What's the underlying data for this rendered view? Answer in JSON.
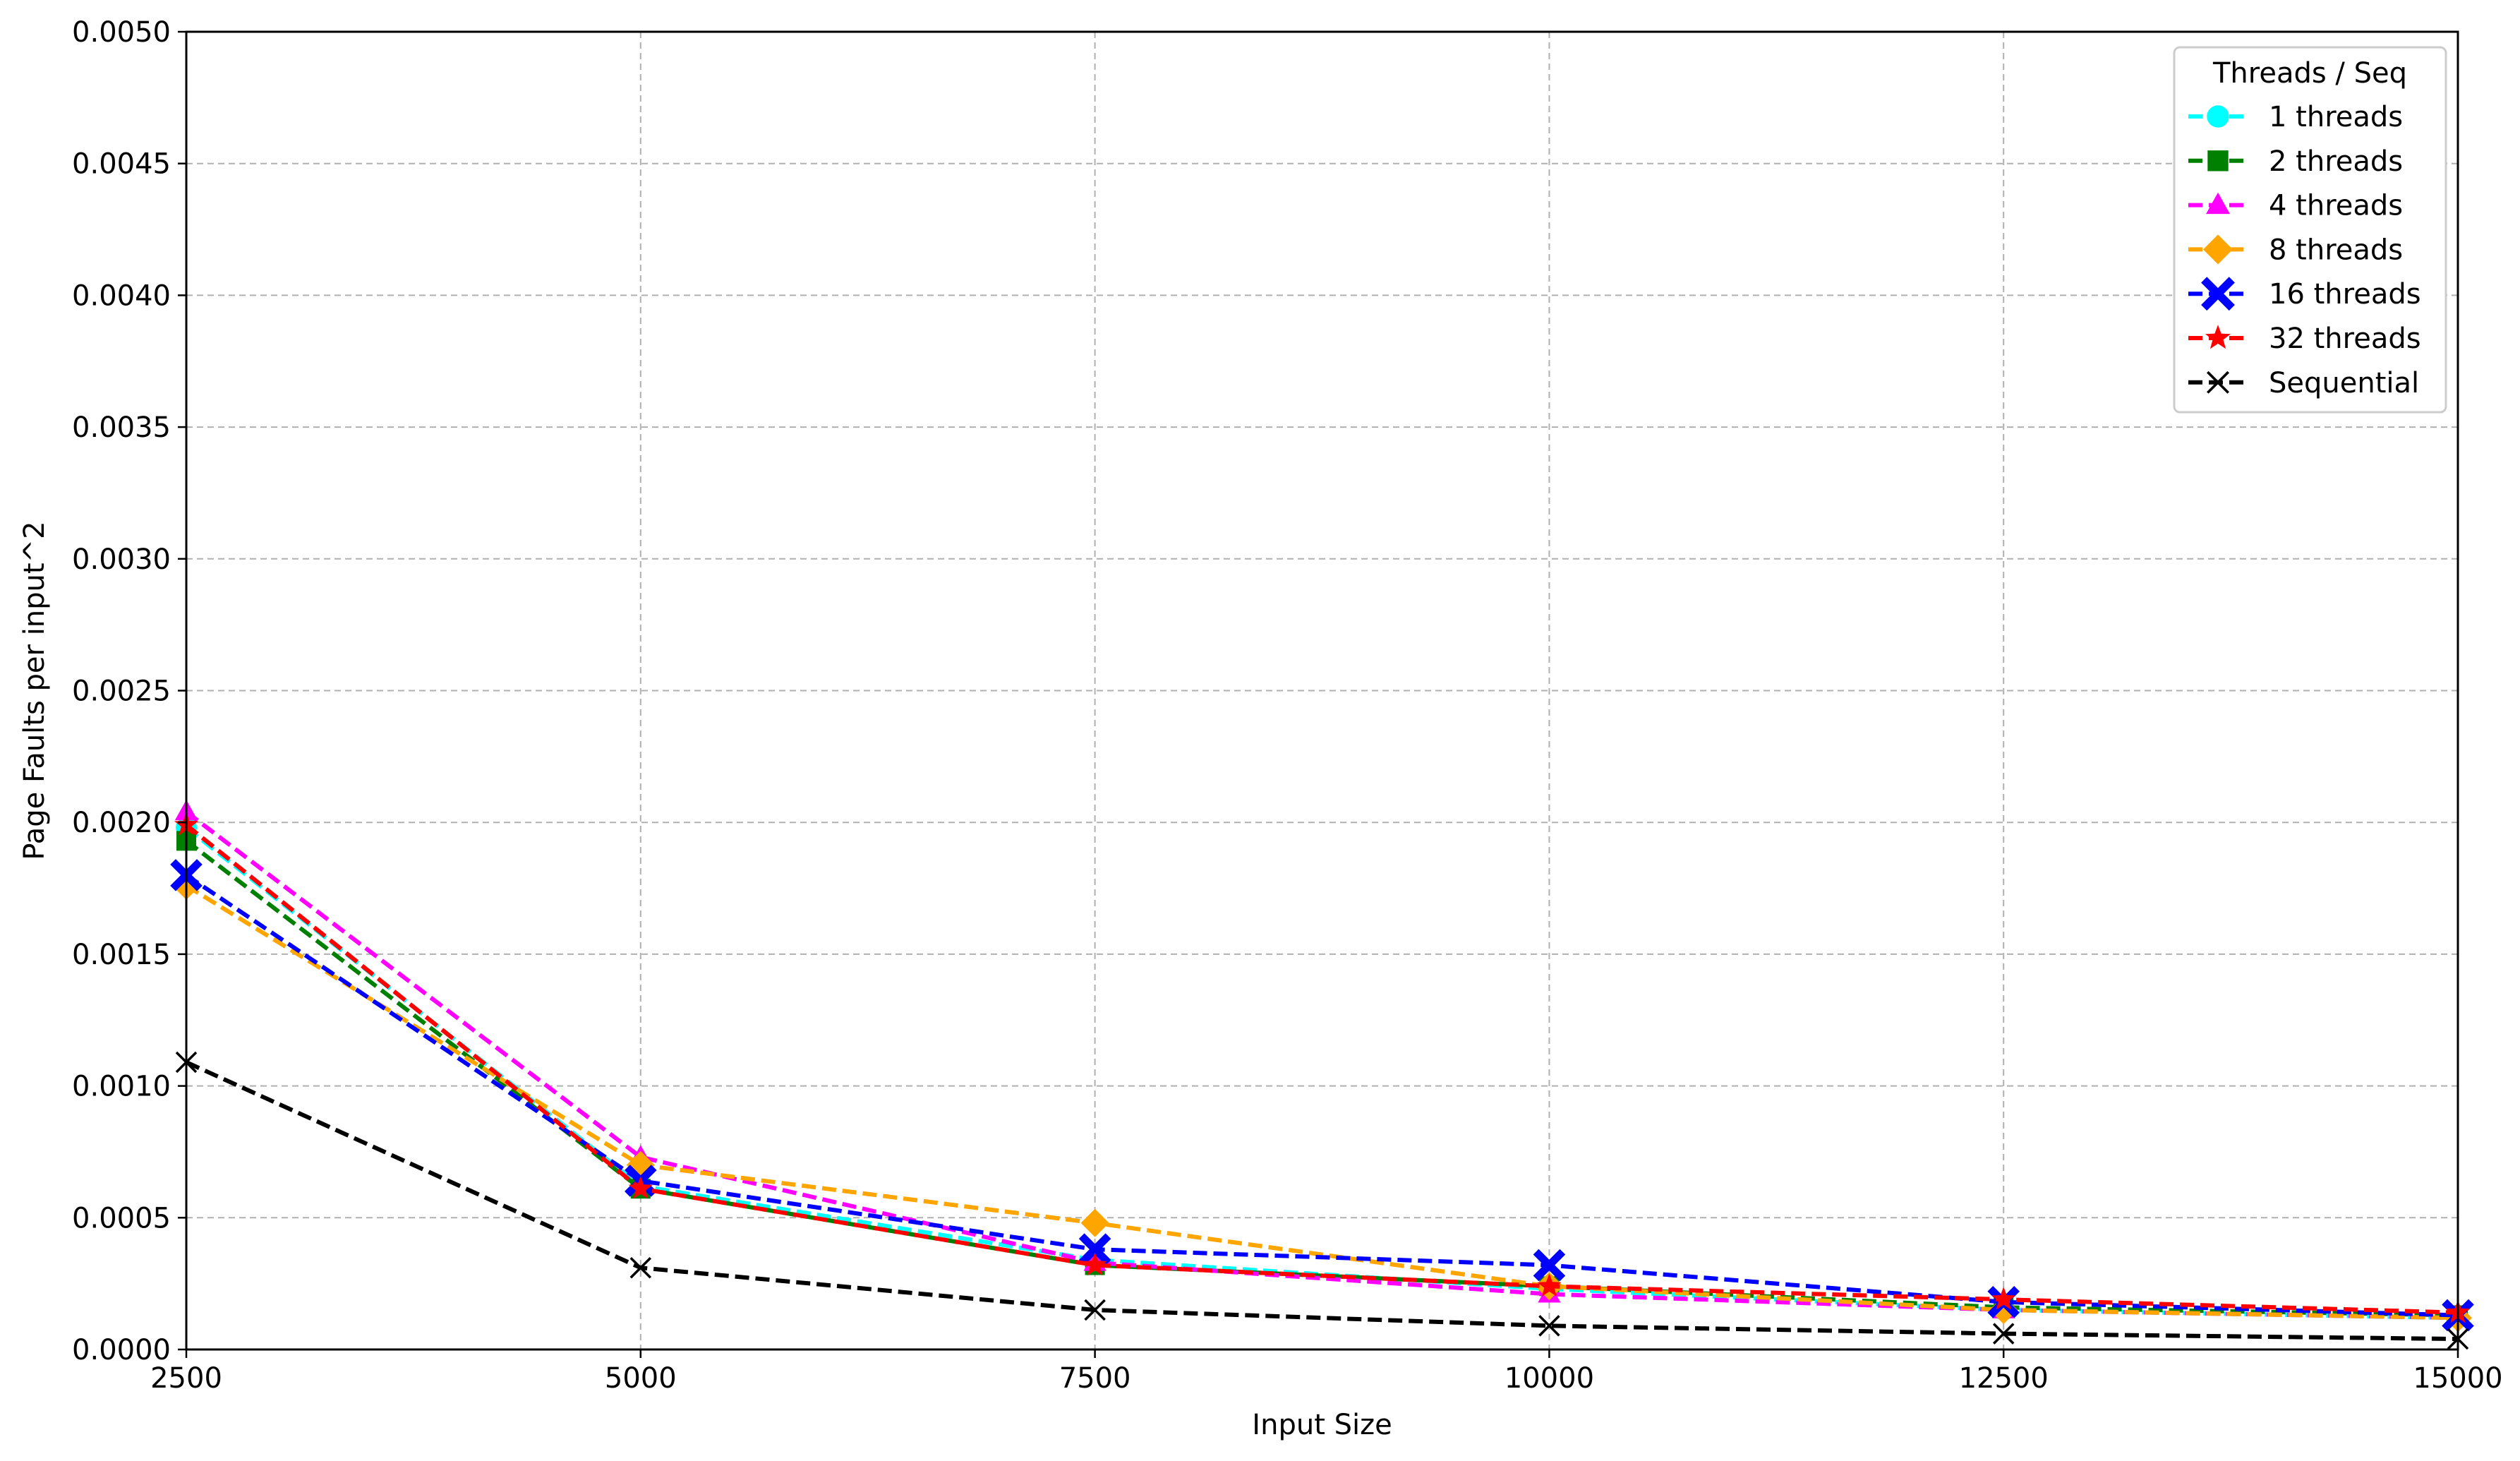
{
  "chart_data": {
    "type": "line",
    "title": "",
    "xlabel": "Input Size",
    "ylabel": "Page Faults per input^2",
    "xlim": [
      2500,
      15000
    ],
    "ylim": [
      0,
      0.005
    ],
    "x": [
      2500,
      5000,
      7500,
      10000,
      12500,
      15000
    ],
    "xticks": [
      "2500",
      "5000",
      "7500",
      "10000",
      "12500",
      "15000"
    ],
    "yticks": [
      "0.0000",
      "0.0005",
      "0.0010",
      "0.0015",
      "0.0020",
      "0.0025",
      "0.0030",
      "0.0035",
      "0.0040",
      "0.0045",
      "0.0050"
    ],
    "grid": true,
    "legend": {
      "title": "Threads / Seq",
      "position": "top-right"
    },
    "series": [
      {
        "name": "1 threads",
        "color": "#00ffff",
        "marker": "circle",
        "values": [
          0.00198,
          0.00062,
          0.00034,
          0.00023,
          0.00015,
          0.00012
        ]
      },
      {
        "name": "2 threads",
        "color": "#008000",
        "marker": "square",
        "values": [
          0.00193,
          0.00061,
          0.00032,
          0.00024,
          0.00016,
          0.00013
        ]
      },
      {
        "name": "4 threads",
        "color": "#ff00ff",
        "marker": "triangle",
        "values": [
          0.00204,
          0.00073,
          0.00033,
          0.00021,
          0.00015,
          0.00012
        ]
      },
      {
        "name": "8 threads",
        "color": "#ffa500",
        "marker": "diamond",
        "values": [
          0.00176,
          0.0007,
          0.00048,
          0.00024,
          0.00015,
          0.00012
        ]
      },
      {
        "name": "16 threads",
        "color": "#0000ff",
        "marker": "xfilled",
        "values": [
          0.0018,
          0.00064,
          0.00038,
          0.00032,
          0.00018,
          0.00013
        ]
      },
      {
        "name": "32 threads",
        "color": "#ff0000",
        "marker": "star",
        "values": [
          0.00199,
          0.00061,
          0.00032,
          0.00024,
          0.00019,
          0.00014
        ]
      },
      {
        "name": "Sequential",
        "color": "#000000",
        "marker": "x",
        "values": [
          0.00109,
          0.00031,
          0.00015,
          9e-05,
          6e-05,
          4e-05
        ]
      }
    ]
  }
}
